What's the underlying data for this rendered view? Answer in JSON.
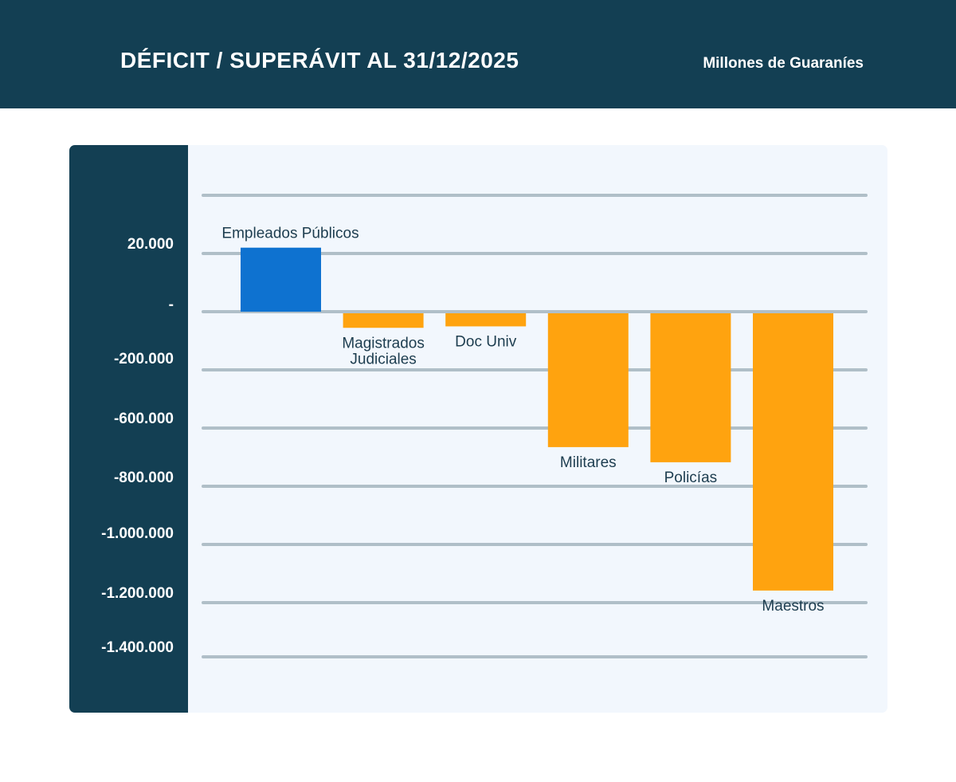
{
  "header": {
    "title": "DÉFICIT / SUPERÁVIT AL 31/12/2025",
    "units": "Millones de Guaraníes"
  },
  "chart_data": {
    "type": "bar",
    "title": "DÉFICIT / SUPERÁVIT AL 31/12/2025",
    "ylabel": "Millones de Guaraníes",
    "categories": [
      "Empleados  Públicos",
      "Magistrados Judiciales",
      "Doc Univ",
      "Militares",
      "Policías",
      "Maestros"
    ],
    "category_lines": [
      [
        "Empleados  Públicos"
      ],
      [
        "Magistrados",
        "Judiciales"
      ],
      [
        "Doc Univ"
      ],
      [
        "Militares"
      ],
      [
        "Policías"
      ],
      [
        "Maestros"
      ]
    ],
    "values": [
      220000,
      -50000,
      -45000,
      -460000,
      -512000,
      -953000
    ],
    "colors": [
      "#0e72d0",
      "#ffa30f",
      "#ffa30f",
      "#ffa30f",
      "#ffa30f",
      "#ffa30f"
    ],
    "tick_labels": [
      "20.000",
      "-",
      "-200.000",
      "-600.000",
      "-800.000",
      "-1.000.000",
      "-1.200.000",
      "-1.400.000"
    ],
    "ylim": [
      -1400000,
      400000
    ],
    "grid": true,
    "grid_color": "#b0bfc8"
  }
}
